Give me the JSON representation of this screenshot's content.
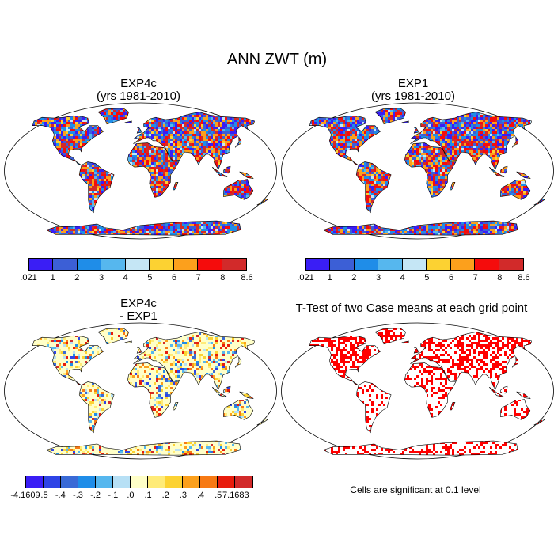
{
  "title": "ANN ZWT (m)",
  "panels": [
    {
      "id": "p1",
      "title_line1": "EXP4c",
      "title_line2": "(yrs 1981-2010)",
      "field": "abs"
    },
    {
      "id": "p2",
      "title_line1": "EXP1",
      "title_line2": "(yrs 1981-2010)",
      "field": "abs"
    },
    {
      "id": "p3",
      "title_line1": "EXP4c",
      "title_line2": "- EXP1",
      "field": "diff"
    },
    {
      "id": "p4",
      "title_line1": "T-Test of two Case means at each grid point",
      "title_line2": "",
      "field": "sig"
    }
  ],
  "colorbars": {
    "abs": {
      "labels": [
        ".021",
        "1",
        "2",
        "3",
        "4",
        "5",
        "6",
        "7",
        "8",
        "8.6"
      ],
      "colors": [
        "#3a1ef5",
        "#3c5fd6",
        "#1f8de8",
        "#56b7ee",
        "#c5e6f5",
        "#fcd232",
        "#fca01c",
        "#f50c0c",
        "#d22a2a"
      ]
    },
    "diff": {
      "labels": [
        "-4.1609",
        "-.5",
        "-.4",
        "-.3",
        "-.2",
        "-.1",
        ".0",
        ".1",
        ".2",
        ".3",
        ".4",
        ".5",
        "7.1683"
      ],
      "colors": [
        "#3a1ef5",
        "#2e44e6",
        "#3a6ad6",
        "#1f8de8",
        "#56b7ee",
        "#b7e0f5",
        "#ffffc8",
        "#ffeb78",
        "#fcd232",
        "#fca01c",
        "#f77a14",
        "#e81c0c",
        "#d22a2a"
      ]
    }
  },
  "significance": {
    "note": "Cells are significant at 0.1 level",
    "color": "#ff0000"
  },
  "map": {
    "projection": "Robinson",
    "land_outline_color": "#000000"
  }
}
